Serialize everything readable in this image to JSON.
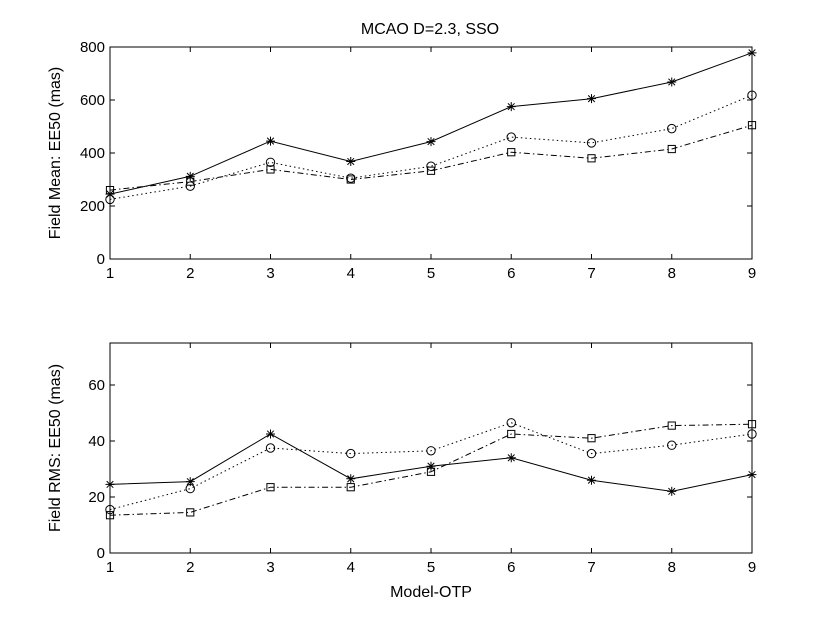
{
  "figure_title": "MCAO D=2.3, SSO",
  "chart_data": [
    {
      "type": "line",
      "title": "MCAO D=2.3, SSO",
      "xlabel": "",
      "ylabel": "Field Mean: EE50 (mas)",
      "x": [
        1,
        2,
        3,
        4,
        5,
        6,
        7,
        8,
        9
      ],
      "xlim": [
        1,
        9
      ],
      "ylim": [
        0,
        800
      ],
      "xticks": [
        1,
        2,
        3,
        4,
        5,
        6,
        7,
        8,
        9
      ],
      "yticks": [
        0,
        200,
        400,
        600,
        800
      ],
      "grid": false,
      "series": [
        {
          "name": "star-solid",
          "marker": "star",
          "line": "solid",
          "values": [
            245,
            312,
            445,
            368,
            443,
            575,
            605,
            668,
            778
          ]
        },
        {
          "name": "circle-dotted",
          "marker": "circle",
          "line": "dotted",
          "values": [
            225,
            275,
            365,
            305,
            350,
            460,
            438,
            492,
            618
          ]
        },
        {
          "name": "square-dashdot",
          "marker": "square",
          "line": "dashdot",
          "values": [
            260,
            292,
            338,
            300,
            333,
            403,
            380,
            415,
            505
          ]
        }
      ]
    },
    {
      "type": "line",
      "title": "",
      "xlabel": "Model-OTP",
      "ylabel": "Field RMS: EE50 (mas)",
      "x": [
        1,
        2,
        3,
        4,
        5,
        6,
        7,
        8,
        9
      ],
      "xlim": [
        1,
        9
      ],
      "ylim": [
        0,
        75
      ],
      "xticks": [
        1,
        2,
        3,
        4,
        5,
        6,
        7,
        8,
        9
      ],
      "yticks": [
        0,
        20,
        40,
        60
      ],
      "grid": false,
      "series": [
        {
          "name": "star-solid",
          "marker": "star",
          "line": "solid",
          "values": [
            24.5,
            25.5,
            42.5,
            26.5,
            31,
            34,
            26,
            22,
            28
          ]
        },
        {
          "name": "circle-dotted",
          "marker": "circle",
          "line": "dotted",
          "values": [
            15.5,
            23,
            37.5,
            35.5,
            36.5,
            46.5,
            35.5,
            38.5,
            42.5
          ]
        },
        {
          "name": "square-dashdot",
          "marker": "square",
          "line": "dashdot",
          "values": [
            13.5,
            14.5,
            23.5,
            23.5,
            29,
            42.5,
            41,
            45.5,
            46
          ]
        }
      ]
    }
  ]
}
